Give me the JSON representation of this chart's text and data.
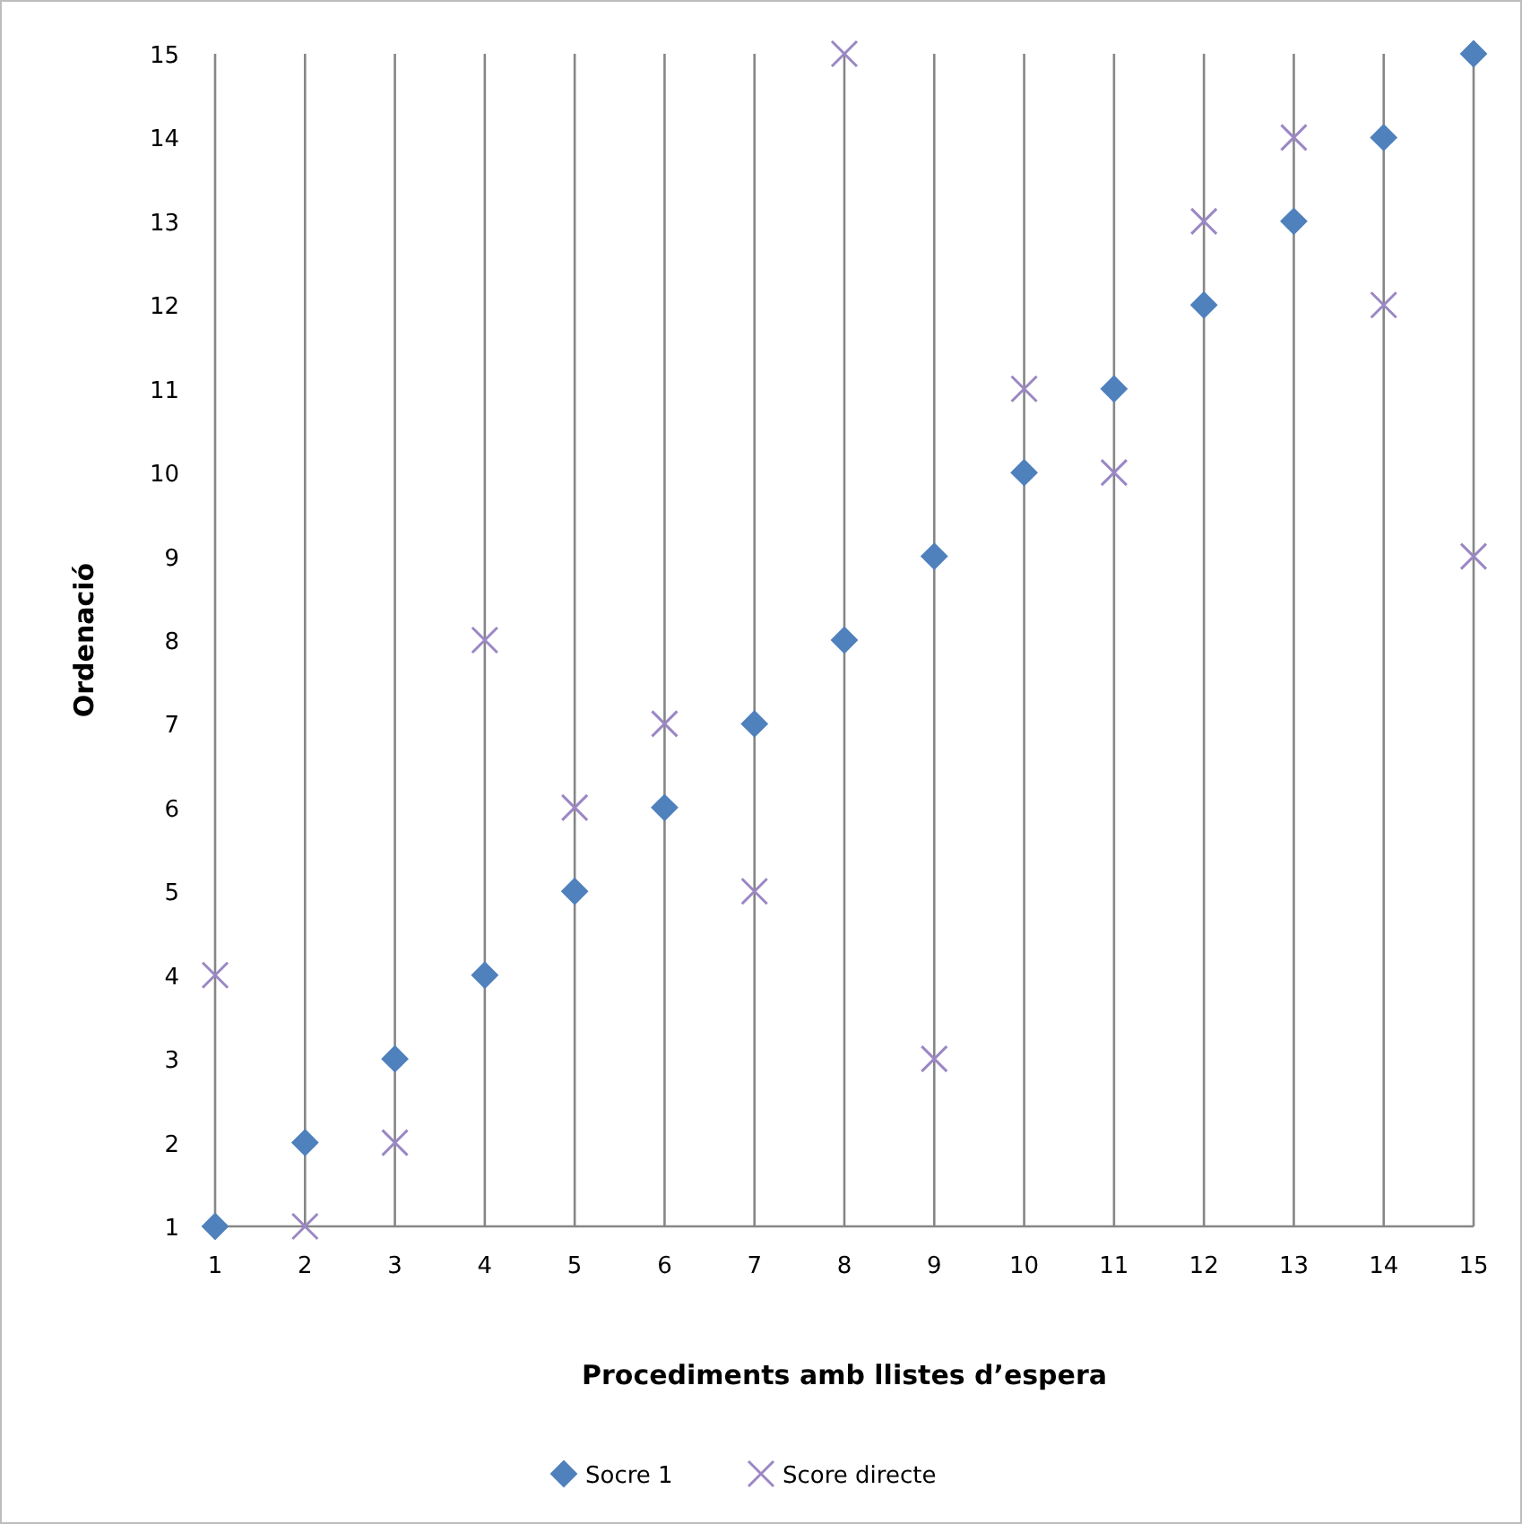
{
  "chart_data": {
    "type": "scatter",
    "xlabel": "Procediments amb llistes d’espera",
    "ylabel": "Ordenació",
    "x": [
      1,
      2,
      3,
      4,
      5,
      6,
      7,
      8,
      9,
      10,
      11,
      12,
      13,
      14,
      15
    ],
    "series": [
      {
        "name": "Socre 1",
        "color": "#4f81bd",
        "marker": "diamond",
        "values": [
          1,
          2,
          3,
          4,
          5,
          6,
          7,
          8,
          9,
          10,
          11,
          12,
          13,
          14,
          15
        ]
      },
      {
        "name": "Score directe",
        "color": "#9b87c4",
        "marker": "cross",
        "values": [
          4,
          1,
          2,
          8,
          6,
          7,
          5,
          15,
          3,
          11,
          10,
          13,
          14,
          12,
          9
        ]
      }
    ],
    "xlim": [
      1,
      15
    ],
    "xticks": [
      1,
      2,
      3,
      4,
      5,
      6,
      7,
      8,
      9,
      10,
      11,
      12,
      13,
      14,
      15
    ],
    "ylim": [
      1,
      15
    ],
    "yticks": [
      1,
      2,
      3,
      4,
      5,
      6,
      7,
      8,
      9,
      10,
      11,
      12,
      13,
      14,
      15
    ],
    "grid": "x",
    "legend": "bottom"
  }
}
